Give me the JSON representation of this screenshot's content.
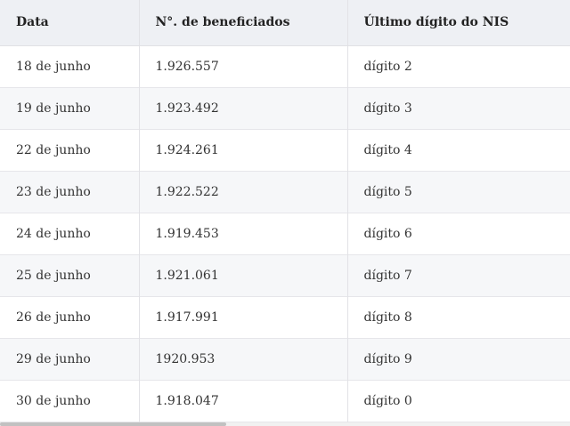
{
  "table": {
    "headers": [
      "Data",
      "N°. de beneficiados",
      "Último dígito do NIS"
    ],
    "rows": [
      [
        "18 de junho",
        "1.926.557",
        "dígito 2"
      ],
      [
        "19 de junho",
        "1.923.492",
        "dígito 3"
      ],
      [
        "22 de junho",
        "1.924.261",
        "dígito 4"
      ],
      [
        "23 de junho",
        "1.922.522",
        "dígito 5"
      ],
      [
        "24 de junho",
        "1.919.453",
        "dígito 6"
      ],
      [
        "25 de junho",
        "1.921.061",
        "dígito 7"
      ],
      [
        "26 de junho",
        "1.917.991",
        "dígito 8"
      ],
      [
        "29 de junho",
        "1920.953",
        "dígito 9"
      ],
      [
        "30 de junho",
        "1.918.047",
        "dígito 0"
      ]
    ]
  },
  "colors": {
    "header_bg": "#eef0f4",
    "row_alt_bg": "#f6f7f9",
    "border": "#e2e2e6"
  }
}
